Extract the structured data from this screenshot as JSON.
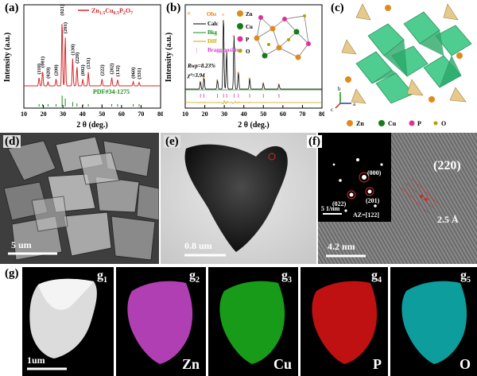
{
  "panel_labels": {
    "a": "(a)",
    "b": "(b)",
    "c": "(c)",
    "d": "(d)",
    "e": "(e)",
    "f": "(f)",
    "g": "(g)"
  },
  "chart_data": [
    {
      "type": "line",
      "panel": "a",
      "title": "",
      "legend": "Zn1.5Cu0.5P2O7",
      "legend_color": "#d62728",
      "xlabel": "2 θ (deg.)",
      "ylabel": "Intensity (a.u.)",
      "xlim": [
        10,
        80
      ],
      "xticks": [
        10,
        20,
        30,
        40,
        50,
        60,
        70,
        80
      ],
      "reference": "PDF#34-1275",
      "peaks": [
        {
          "hkl": "(110)",
          "x": 17.8,
          "h": 0.12
        },
        {
          "hkl": "(001)",
          "x": 19.6,
          "h": 0.22
        },
        {
          "hkl": "(020)",
          "x": 22.4,
          "h": 0.06
        },
        {
          "hkl": "(200)",
          "x": 26.5,
          "h": 0.1
        },
        {
          "hkl": "(021)",
          "x": 29.6,
          "h": 0.98
        },
        {
          "hkl": "(201)",
          "x": 31.2,
          "h": 0.72
        },
        {
          "hkl": "(130)",
          "x": 35.0,
          "h": 0.4
        },
        {
          "hkl": "(220)",
          "x": 37.2,
          "h": 0.28
        },
        {
          "hkl": "(002)",
          "x": 40.2,
          "h": 0.1
        },
        {
          "hkl": "(131)",
          "x": 43.0,
          "h": 0.2
        },
        {
          "hkl": "(222)",
          "x": 50.0,
          "h": 0.1
        },
        {
          "hkl": "(202)",
          "x": 55.0,
          "h": 0.12
        },
        {
          "hkl": "(132)",
          "x": 58.0,
          "h": 0.09
        },
        {
          "hkl": "(060)",
          "x": 66.0,
          "h": 0.06
        },
        {
          "hkl": "(331)",
          "x": 69.0,
          "h": 0.05
        }
      ]
    },
    {
      "type": "line",
      "panel": "b",
      "series": [
        {
          "name": "Obs"
        },
        {
          "name": "Calc"
        },
        {
          "name": "Bkg"
        },
        {
          "name": "Diff"
        },
        {
          "name": "Bragg position"
        }
      ],
      "xlabel": "2 θ (deg.)",
      "ylabel": "Intensity (a.u.)",
      "xlim": [
        10,
        80
      ],
      "xticks": [
        10,
        20,
        30,
        40,
        50,
        60,
        70,
        80
      ],
      "rwp": "Rwp=8.23%",
      "chi2": "χ²=3.94",
      "peaks": [
        {
          "x": 17.8,
          "h": 0.1
        },
        {
          "x": 19.6,
          "h": 0.15
        },
        {
          "x": 26.5,
          "h": 0.12
        },
        {
          "x": 29.6,
          "h": 0.98
        },
        {
          "x": 31.2,
          "h": 0.5
        },
        {
          "x": 35.0,
          "h": 0.7
        },
        {
          "x": 37.2,
          "h": 0.22
        },
        {
          "x": 43.0,
          "h": 0.14
        },
        {
          "x": 50.0,
          "h": 0.08
        },
        {
          "x": 58.0,
          "h": 0.06
        }
      ]
    }
  ],
  "panel_b_atoms": [
    "Zn",
    "Cu",
    "P",
    "O"
  ],
  "panel_c_legend": [
    "Zn",
    "Cu",
    "P",
    "O"
  ],
  "panel_c_axes": {
    "a": "a",
    "b": "b",
    "c": "c"
  },
  "scale_bars": {
    "d": "5 um",
    "e": "0.8 um",
    "f": "4.2 nm",
    "f_inset": "5 1/nm",
    "g": "1um"
  },
  "saed": {
    "spot_000": "(000)",
    "spot_022": "(022)",
    "spot_201": "(201)",
    "zone_axis": "AZ=[122]"
  },
  "hrtem": {
    "plane": "(220)",
    "d_spacing": "2.5 Å"
  },
  "eds": [
    {
      "label": "g",
      "sub": "1",
      "element": ""
    },
    {
      "label": "g",
      "sub": "2",
      "element": "Zn",
      "color": "#d04ad4"
    },
    {
      "label": "g",
      "sub": "3",
      "element": "Cu",
      "color": "#1ec21e"
    },
    {
      "label": "g",
      "sub": "4",
      "element": "P",
      "color": "#e01414"
    },
    {
      "label": "g",
      "sub": "5",
      "element": "O",
      "color": "#10c4c4"
    }
  ]
}
